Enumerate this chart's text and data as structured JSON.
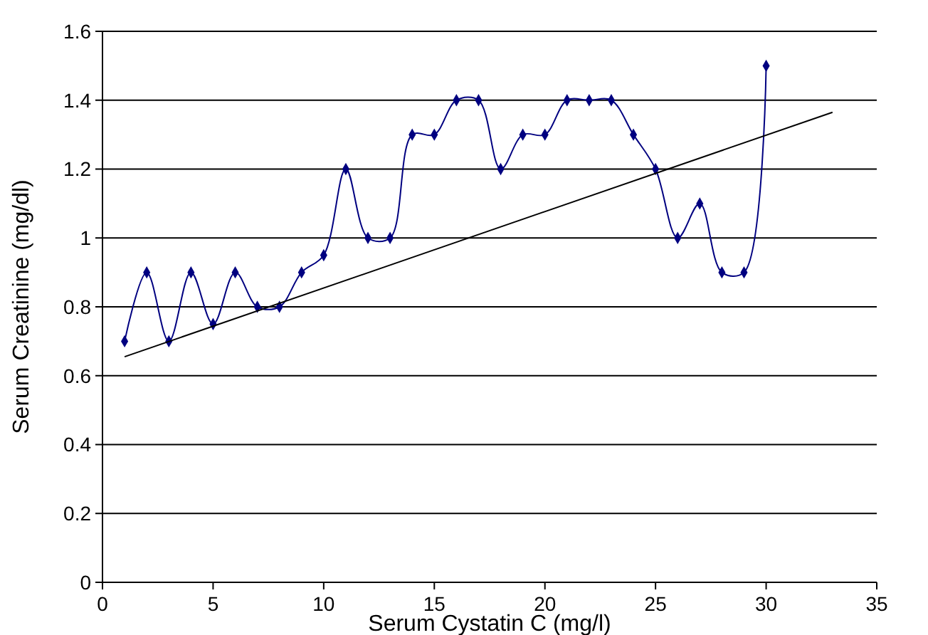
{
  "chart_data": {
    "type": "line",
    "xlabel": "Serum Cystatin C (mg/l)",
    "ylabel": "Serum Creatinine (mg/dl)",
    "xlim": [
      0,
      35
    ],
    "xticks": [
      0,
      5,
      10,
      15,
      20,
      25,
      30,
      35
    ],
    "ylim": [
      0,
      1.6
    ],
    "yticks": [
      0,
      0.2,
      0.4,
      0.6,
      0.8,
      1,
      1.2,
      1.4,
      1.6
    ],
    "grid": "y",
    "series": [
      {
        "color": "#000080",
        "marker": "diamond",
        "x": [
          1,
          2,
          3,
          4,
          5,
          6,
          7,
          8,
          9,
          10,
          11,
          12,
          13,
          14,
          15,
          16,
          17,
          18,
          19,
          20,
          21,
          22,
          23,
          24,
          25,
          26,
          27,
          28,
          29,
          30
        ],
        "values": [
          0.7,
          0.9,
          0.7,
          0.9,
          0.75,
          0.9,
          0.8,
          0.8,
          0.9,
          0.95,
          1.2,
          1.0,
          1.0,
          1.3,
          1.3,
          1.4,
          1.4,
          1.2,
          1.3,
          1.3,
          1.4,
          1.4,
          1.4,
          1.3,
          1.2,
          1.0,
          1.1,
          0.9,
          0.9,
          1.5
        ]
      },
      {
        "color": "#000000",
        "marker": "none",
        "x": [
          1,
          33
        ],
        "values": [
          0.655,
          1.365
        ]
      }
    ]
  }
}
